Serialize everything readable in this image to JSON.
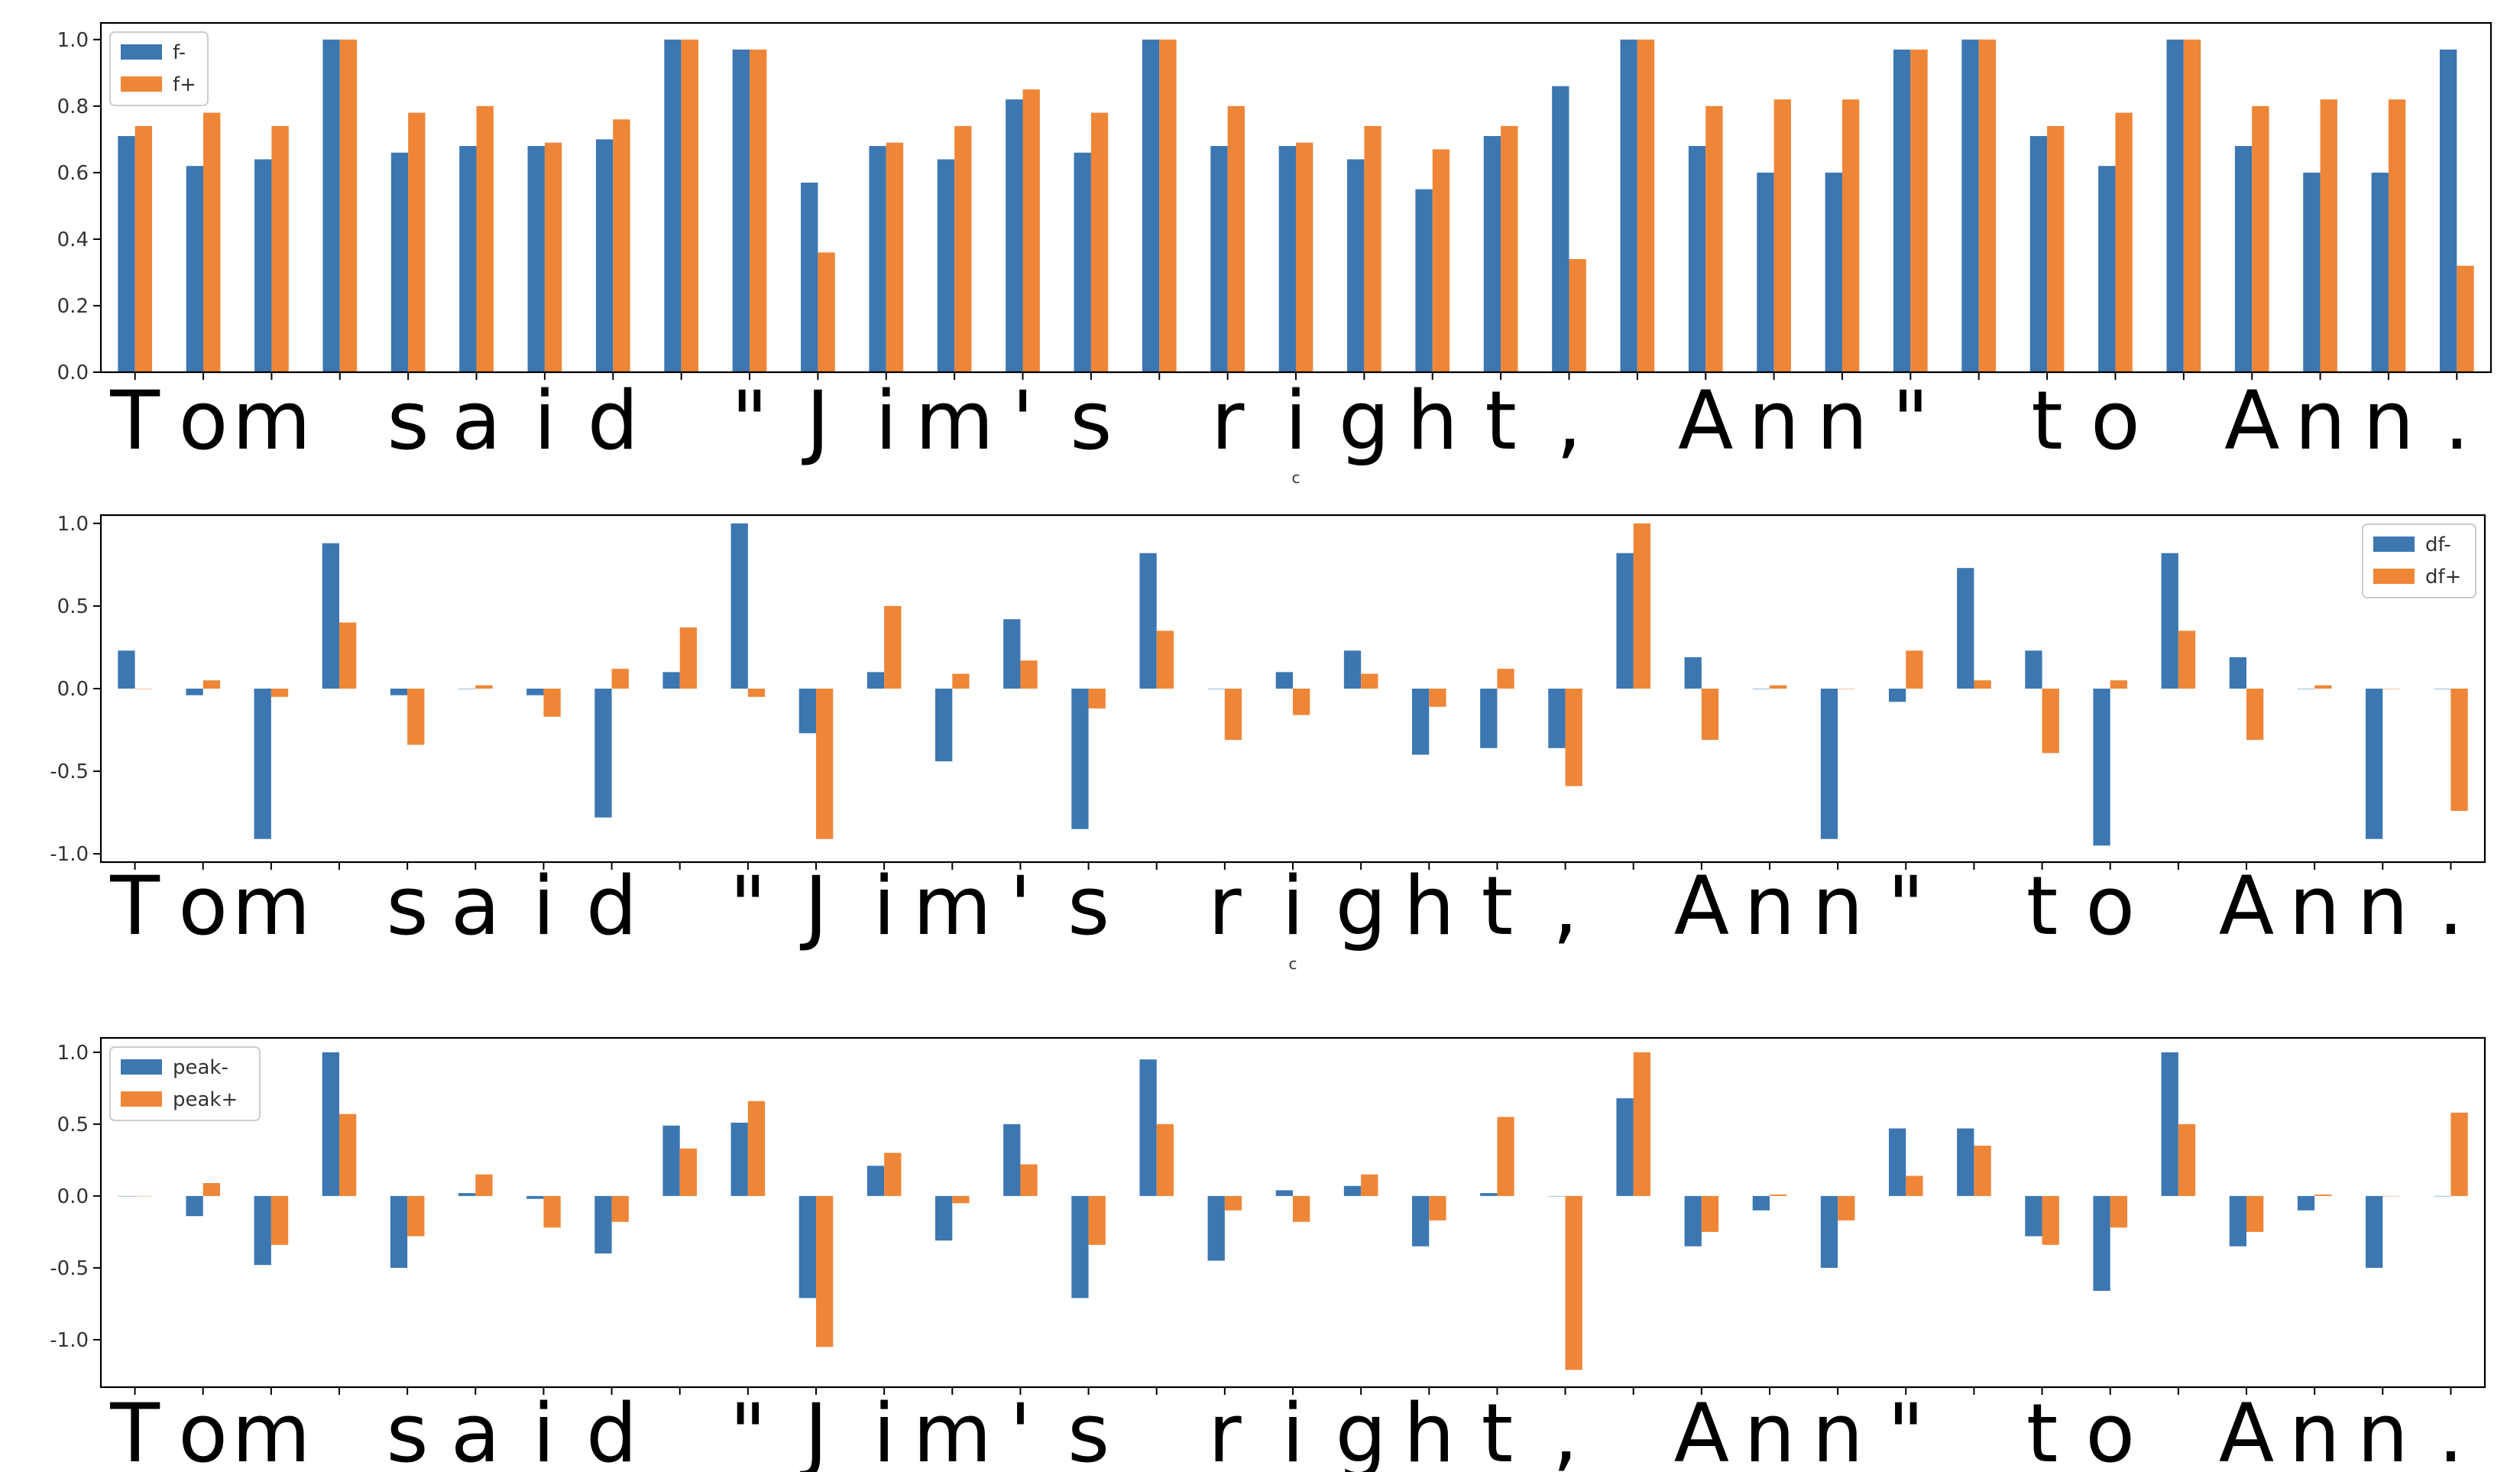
{
  "colors": {
    "minus": "#3c77b1",
    "plus": "#ef8637"
  },
  "chart_data": [
    {
      "type": "bar",
      "xlabel": "c",
      "ylim": [
        0,
        1.05
      ],
      "yticks": [
        0.0,
        0.2,
        0.4,
        0.6,
        0.8,
        1.0
      ],
      "ytick_labels": [
        "0.0",
        "0.2",
        "0.4",
        "0.6",
        "0.8",
        "1.0"
      ],
      "legend_loc": "upper-left",
      "categories": [
        "T",
        "o",
        "m",
        " ",
        "s",
        "a",
        "i",
        "d",
        " ",
        "\"",
        "J",
        "i",
        "m",
        "'",
        "s",
        " ",
        "r",
        "i",
        "g",
        "h",
        "t",
        ",",
        " ",
        "A",
        "n",
        "n",
        "\"",
        " ",
        "t",
        "o",
        " ",
        "A",
        "n",
        "n",
        "."
      ],
      "series": [
        {
          "name": "f-",
          "values": [
            0.71,
            0.62,
            0.64,
            1.0,
            0.66,
            0.68,
            0.68,
            0.7,
            1.0,
            0.97,
            0.57,
            0.68,
            0.64,
            0.82,
            0.66,
            1.0,
            0.68,
            0.68,
            0.64,
            0.55,
            0.71,
            0.86,
            1.0,
            0.68,
            0.6,
            0.6,
            0.97,
            1.0,
            0.71,
            0.62,
            1.0,
            0.68,
            0.6,
            0.6,
            0.97
          ]
        },
        {
          "name": "f+",
          "values": [
            0.74,
            0.78,
            0.74,
            1.0,
            0.78,
            0.8,
            0.69,
            0.76,
            1.0,
            0.97,
            0.36,
            0.69,
            0.74,
            0.85,
            0.78,
            1.0,
            0.8,
            0.69,
            0.74,
            0.67,
            0.74,
            0.34,
            1.0,
            0.8,
            0.82,
            0.82,
            0.97,
            1.0,
            0.74,
            0.78,
            1.0,
            0.8,
            0.82,
            0.82,
            0.32
          ]
        }
      ]
    },
    {
      "type": "bar",
      "xlabel": "c",
      "ylim": [
        -1.05,
        1.05
      ],
      "yticks": [
        -1.0,
        -0.5,
        0.0,
        0.5,
        1.0
      ],
      "ytick_labels": [
        "-1.0",
        "-0.5",
        "0.0",
        "0.5",
        "1.0"
      ],
      "legend_loc": "upper-right",
      "categories": [
        "T",
        "o",
        "m",
        " ",
        "s",
        "a",
        "i",
        "d",
        " ",
        "\"",
        "J",
        "i",
        "m",
        "'",
        "s",
        " ",
        "r",
        "i",
        "g",
        "h",
        "t",
        ",",
        " ",
        "A",
        "n",
        "n",
        "\"",
        " ",
        "t",
        "o",
        " ",
        "A",
        "n",
        "n",
        "."
      ],
      "series": [
        {
          "name": "df-",
          "values": [
            0.23,
            -0.04,
            -0.91,
            0.88,
            -0.04,
            0.0,
            -0.04,
            -0.78,
            0.1,
            1.0,
            -0.27,
            0.1,
            -0.44,
            0.42,
            -0.85,
            0.82,
            0.0,
            0.1,
            0.23,
            -0.4,
            -0.36,
            -0.36,
            0.82,
            0.19,
            0.0,
            -0.91,
            -0.08,
            0.73,
            0.23,
            -0.95,
            0.82,
            0.19,
            0.0,
            -0.91,
            0.0
          ]
        },
        {
          "name": "df+",
          "values": [
            0.0,
            0.05,
            -0.05,
            0.4,
            -0.34,
            0.02,
            -0.17,
            0.12,
            0.37,
            -0.05,
            -0.91,
            0.5,
            0.09,
            0.17,
            -0.12,
            0.35,
            -0.31,
            -0.16,
            0.09,
            -0.11,
            0.12,
            -0.59,
            1.0,
            -0.31,
            0.02,
            0.0,
            0.23,
            0.05,
            -0.39,
            0.05,
            0.35,
            -0.31,
            0.02,
            0.0,
            -0.74
          ]
        }
      ]
    },
    {
      "type": "bar",
      "xlabel": "",
      "ylim": [
        -1.33,
        1.1
      ],
      "yticks": [
        -1.0,
        -0.5,
        0.0,
        0.5,
        1.0
      ],
      "ytick_labels": [
        "-1.0",
        "-0.5",
        "0.0",
        "0.5",
        "1.0"
      ],
      "legend_loc": "upper-left",
      "categories": [
        "T",
        "o",
        "m",
        " ",
        "s",
        "a",
        "i",
        "d",
        " ",
        "\"",
        "J",
        "i",
        "m",
        "'",
        "s",
        " ",
        "r",
        "i",
        "g",
        "h",
        "t",
        ",",
        " ",
        "A",
        "n",
        "n",
        "\"",
        " ",
        "t",
        "o",
        " ",
        "A",
        "n",
        "n",
        "."
      ],
      "series": [
        {
          "name": "peak-",
          "values": [
            0.0,
            -0.14,
            -0.48,
            1.0,
            -0.5,
            0.02,
            -0.02,
            -0.4,
            0.49,
            0.51,
            -0.71,
            0.21,
            -0.31,
            0.5,
            -0.71,
            0.95,
            -0.45,
            0.04,
            0.07,
            -0.35,
            0.02,
            0.0,
            0.68,
            -0.35,
            -0.1,
            -0.5,
            0.47,
            0.47,
            -0.28,
            -0.66,
            1.0,
            -0.35,
            -0.1,
            -0.5,
            0.0
          ]
        },
        {
          "name": "peak+",
          "values": [
            0.0,
            0.09,
            -0.34,
            0.57,
            -0.28,
            0.15,
            -0.22,
            -0.18,
            0.33,
            0.66,
            -1.05,
            0.3,
            -0.05,
            0.22,
            -0.34,
            0.5,
            -0.1,
            -0.18,
            0.15,
            -0.17,
            0.55,
            -1.21,
            1.0,
            -0.25,
            0.01,
            -0.17,
            0.14,
            0.35,
            -0.34,
            -0.22,
            0.5,
            -0.25,
            0.01,
            0.0,
            0.58
          ]
        }
      ]
    }
  ]
}
